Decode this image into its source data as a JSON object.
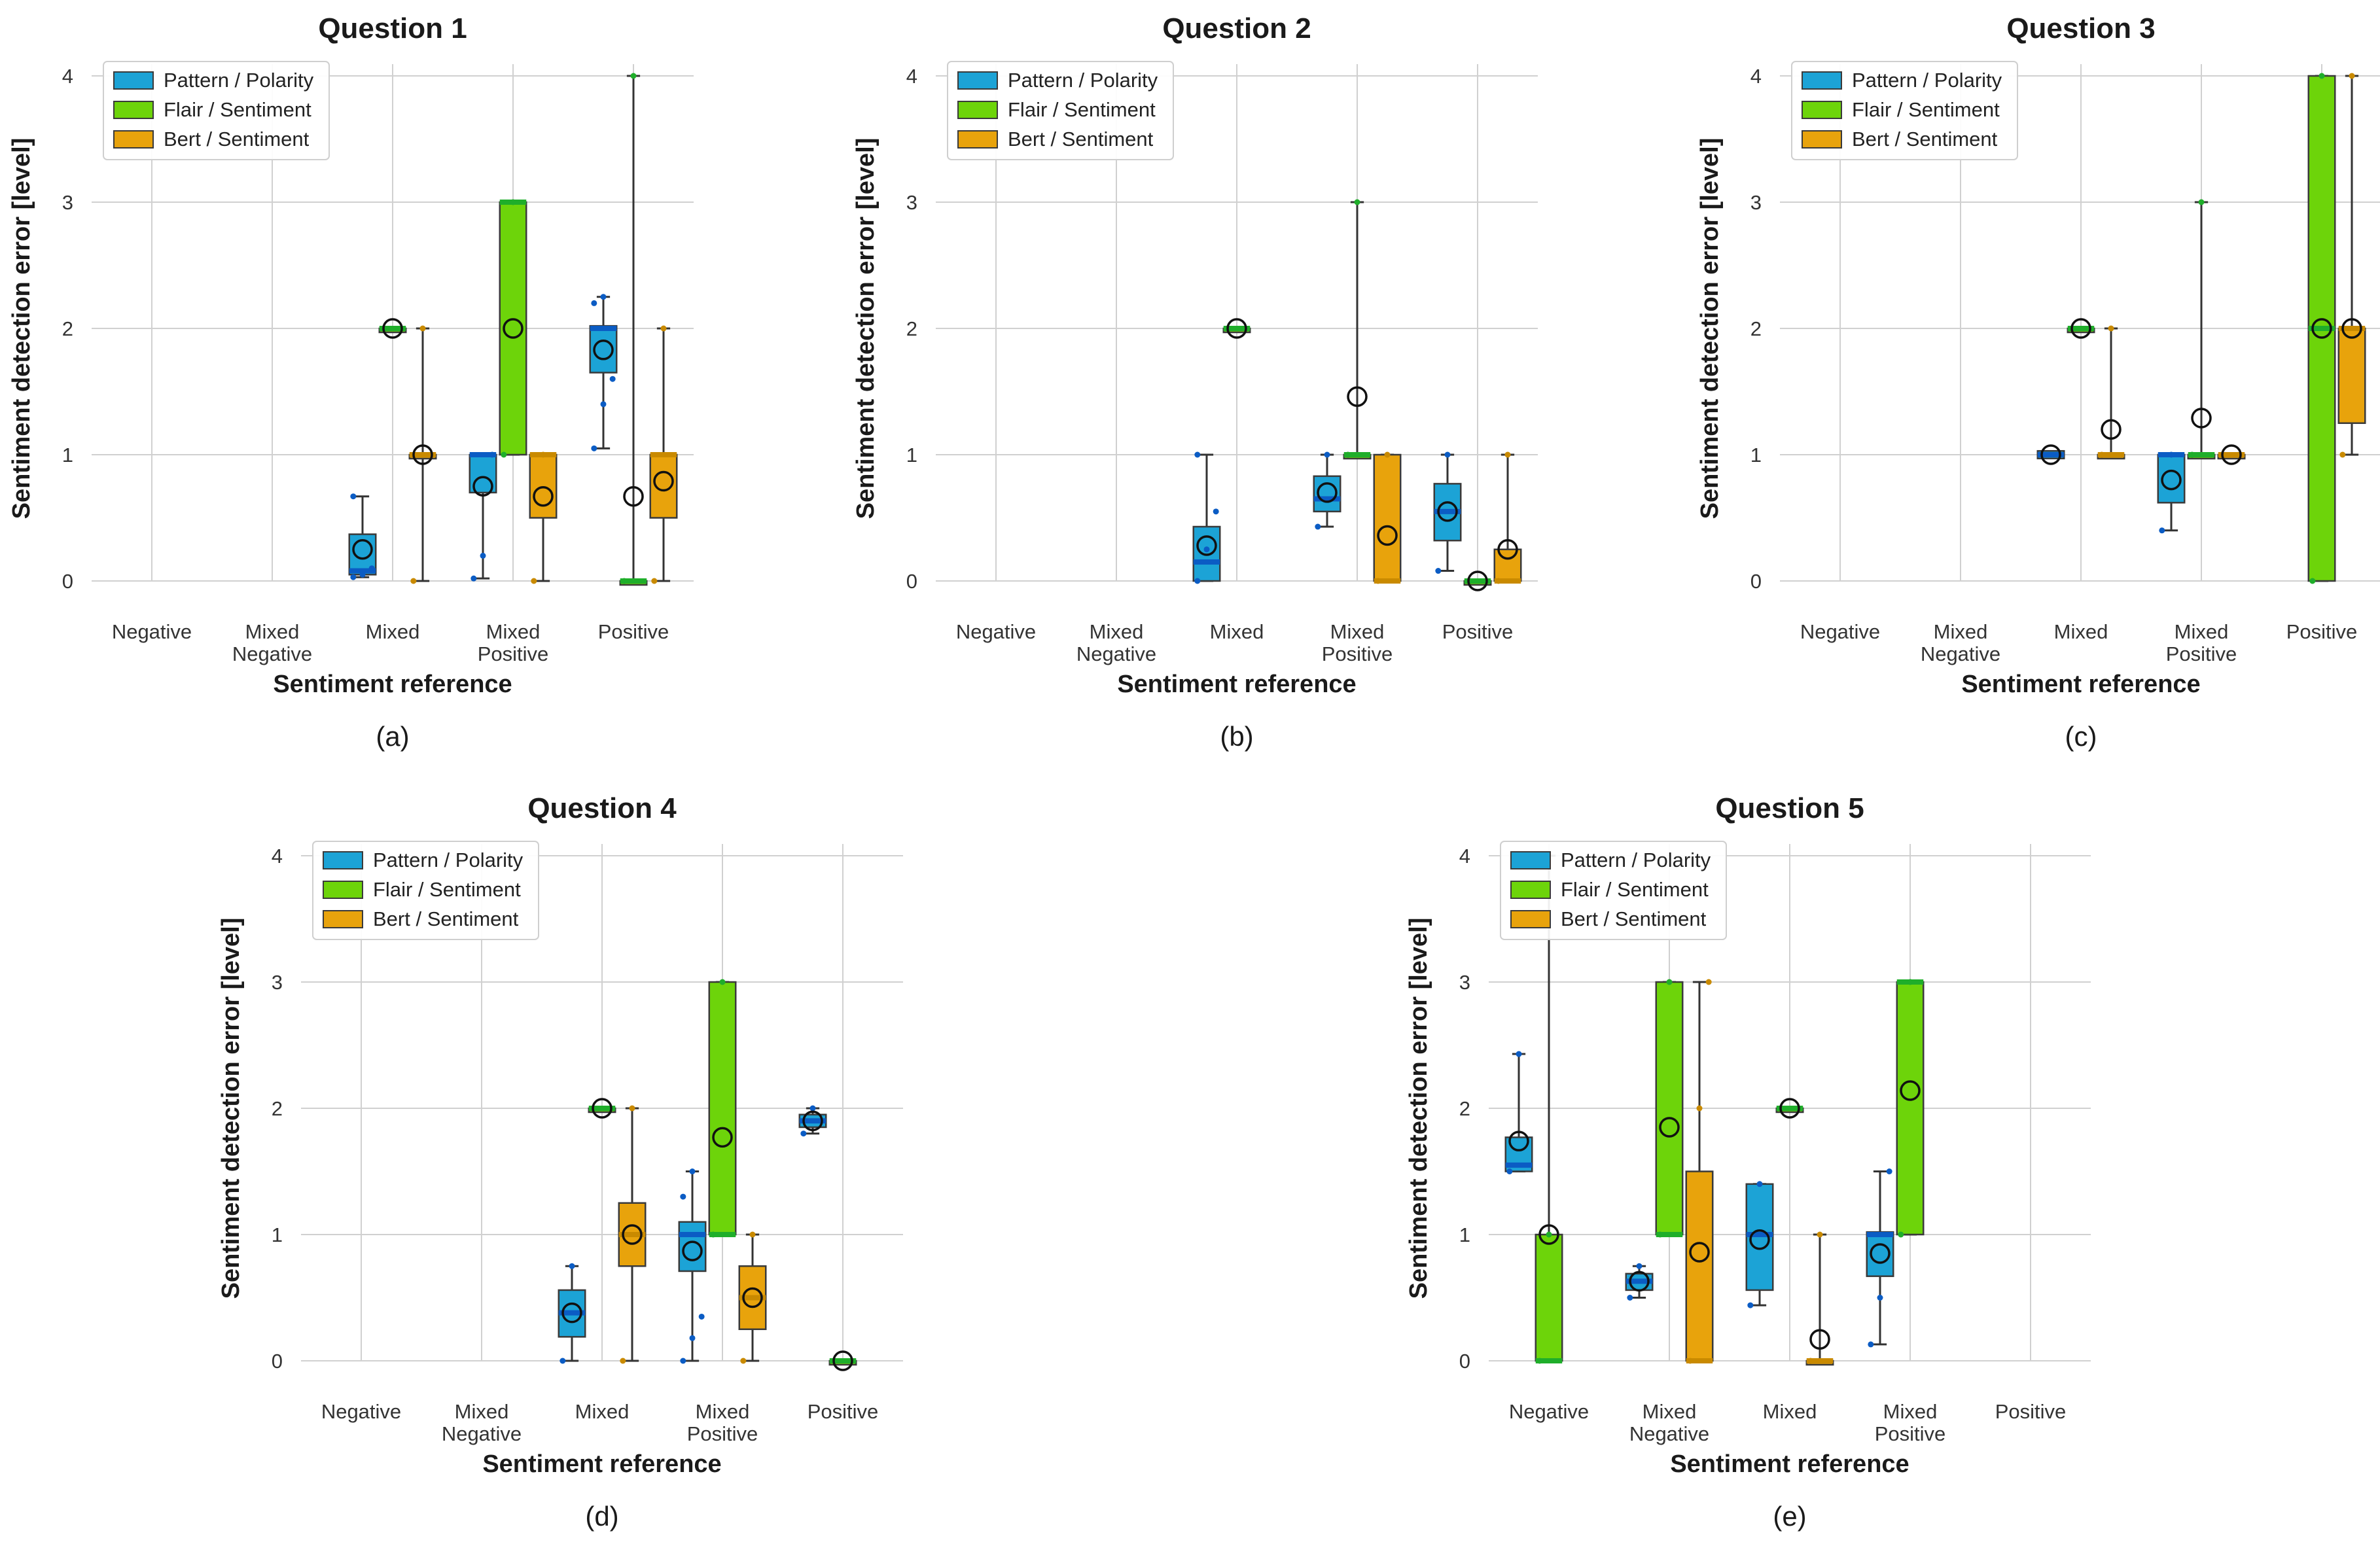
{
  "colors": {
    "pattern": "#1ca3d6",
    "flair": "#6dd40a",
    "bert": "#e8a30c",
    "pattern_median": "#0b5cc4",
    "flair_median": "#1fae2a",
    "bert_median": "#c98a00",
    "grid": "#d0d0d0",
    "whisker": "#333333"
  },
  "chart_data": [
    {
      "type": "box",
      "title": "Question 1",
      "caption": "(a)",
      "caption_letter": "a",
      "xlabel": "Sentiment reference",
      "ylabel": "Sentiment detection error [level]",
      "ylim": [
        0,
        4
      ],
      "yticks": [
        "0",
        "1",
        "2",
        "3",
        "4"
      ],
      "categories": [
        [
          "Negative"
        ],
        [
          "Mixed",
          "Negative"
        ],
        [
          "Mixed"
        ],
        [
          "Mixed",
          "Positive"
        ],
        [
          "Positive"
        ]
      ],
      "legend": [
        "Pattern / Polarity",
        "Flair / Sentiment",
        "Bert / Sentiment"
      ],
      "legend_position": "top-left",
      "series": [
        {
          "name": "Pattern / Polarity",
          "boxes": [
            null,
            null,
            {
              "wlo": 0.03,
              "q1": 0.05,
              "med": 0.08,
              "q3": 0.37,
              "whi": 0.67,
              "mean": 0.25,
              "pts": [
                0.03,
                0.05,
                0.1,
                0.67
              ]
            },
            {
              "wlo": 0.02,
              "q1": 0.7,
              "med": 1.0,
              "q3": 1.0,
              "whi": 1.0,
              "mean": 0.75,
              "pts": [
                0.02,
                0.2,
                1.0
              ]
            },
            {
              "wlo": 1.05,
              "q1": 1.65,
              "med": 2.0,
              "q3": 2.02,
              "whi": 2.25,
              "mean": 1.83,
              "pts": [
                1.05,
                1.4,
                1.6,
                2.2,
                2.25
              ]
            }
          ]
        },
        {
          "name": "Flair / Sentiment",
          "boxes": [
            null,
            null,
            {
              "wlo": 2.0,
              "q1": 2.0,
              "med": 2.0,
              "q3": 2.0,
              "whi": 2.0,
              "mean": 2.0,
              "pts": [
                2.0
              ]
            },
            {
              "wlo": 1.0,
              "q1": 1.0,
              "med": 3.0,
              "q3": 3.0,
              "whi": 3.0,
              "mean": 2.0,
              "pts": [
                1.0,
                3.0
              ]
            },
            {
              "wlo": 0.0,
              "q1": 0.0,
              "med": 0.0,
              "q3": 0.0,
              "whi": 4.0,
              "mean": 0.67,
              "pts": [
                0.0,
                4.0
              ]
            }
          ]
        },
        {
          "name": "Bert / Sentiment",
          "boxes": [
            null,
            null,
            {
              "wlo": 0.0,
              "q1": 1.0,
              "med": 1.0,
              "q3": 1.0,
              "whi": 2.0,
              "mean": 1.0,
              "pts": [
                0.0,
                2.0
              ]
            },
            {
              "wlo": 0.0,
              "q1": 0.5,
              "med": 1.0,
              "q3": 1.0,
              "whi": 1.0,
              "mean": 0.67,
              "pts": [
                0.0,
                1.0
              ]
            },
            {
              "wlo": 0.0,
              "q1": 0.5,
              "med": 1.0,
              "q3": 1.0,
              "whi": 2.0,
              "mean": 0.79,
              "pts": [
                0.0,
                2.0
              ]
            }
          ]
        }
      ]
    },
    {
      "type": "box",
      "title": "Question 2",
      "caption": "(b)",
      "caption_letter": "b",
      "xlabel": "Sentiment reference",
      "ylabel": "Sentiment detection error [level]",
      "ylim": [
        0,
        4
      ],
      "yticks": [
        "0",
        "1",
        "2",
        "3",
        "4"
      ],
      "categories": [
        [
          "Negative"
        ],
        [
          "Mixed",
          "Negative"
        ],
        [
          "Mixed"
        ],
        [
          "Mixed",
          "Positive"
        ],
        [
          "Positive"
        ]
      ],
      "legend": [
        "Pattern / Polarity",
        "Flair / Sentiment",
        "Bert / Sentiment"
      ],
      "legend_position": "top-left",
      "series": [
        {
          "name": "Pattern / Polarity",
          "boxes": [
            null,
            null,
            {
              "wlo": 0.0,
              "q1": 0.0,
              "med": 0.15,
              "q3": 0.43,
              "whi": 1.0,
              "mean": 0.28,
              "pts": [
                0.0,
                0.25,
                0.55,
                1.0
              ]
            },
            {
              "wlo": 0.43,
              "q1": 0.55,
              "med": 0.65,
              "q3": 0.83,
              "whi": 1.0,
              "mean": 0.7,
              "pts": [
                0.43,
                1.0
              ]
            },
            {
              "wlo": 0.08,
              "q1": 0.32,
              "med": 0.55,
              "q3": 0.77,
              "whi": 1.0,
              "mean": 0.55,
              "pts": [
                0.08,
                1.0
              ]
            }
          ]
        },
        {
          "name": "Flair / Sentiment",
          "boxes": [
            null,
            null,
            {
              "wlo": 2.0,
              "q1": 2.0,
              "med": 2.0,
              "q3": 2.0,
              "whi": 2.0,
              "mean": 2.0,
              "pts": [
                2.0
              ]
            },
            {
              "wlo": 1.0,
              "q1": 1.0,
              "med": 1.0,
              "q3": 1.0,
              "whi": 3.0,
              "mean": 1.46,
              "pts": [
                1.0,
                3.0
              ]
            },
            {
              "wlo": 0.0,
              "q1": 0.0,
              "med": 0.0,
              "q3": 0.0,
              "whi": 0.0,
              "mean": 0.0,
              "pts": [
                0.0
              ]
            }
          ]
        },
        {
          "name": "Bert / Sentiment",
          "boxes": [
            null,
            null,
            null,
            {
              "wlo": 0.0,
              "q1": 0.0,
              "med": 0.0,
              "q3": 1.0,
              "whi": 1.0,
              "mean": 0.36,
              "pts": [
                0.0,
                1.0
              ]
            },
            {
              "wlo": 0.0,
              "q1": 0.0,
              "med": 0.0,
              "q3": 0.25,
              "whi": 1.0,
              "mean": 0.25,
              "pts": [
                0.0,
                1.0
              ]
            }
          ]
        }
      ]
    },
    {
      "type": "box",
      "title": "Question 3",
      "caption": "(c)",
      "caption_letter": "c",
      "xlabel": "Sentiment reference",
      "ylabel": "Sentiment detection error [level]",
      "ylim": [
        0,
        4
      ],
      "yticks": [
        "0",
        "1",
        "2",
        "3",
        "4"
      ],
      "categories": [
        [
          "Negative"
        ],
        [
          "Mixed",
          "Negative"
        ],
        [
          "Mixed"
        ],
        [
          "Mixed",
          "Positive"
        ],
        [
          "Positive"
        ]
      ],
      "legend": [
        "Pattern / Polarity",
        "Flair / Sentiment",
        "Bert / Sentiment"
      ],
      "legend_position": "top-left",
      "series": [
        {
          "name": "Pattern / Polarity",
          "boxes": [
            null,
            null,
            {
              "wlo": 1.0,
              "q1": 0.97,
              "med": 1.0,
              "q3": 1.03,
              "whi": 1.0,
              "mean": 1.0,
              "pts": [
                1.0
              ]
            },
            {
              "wlo": 0.4,
              "q1": 0.62,
              "med": 1.0,
              "q3": 1.0,
              "whi": 1.0,
              "mean": 0.8,
              "pts": [
                0.4,
                1.0
              ]
            },
            null
          ]
        },
        {
          "name": "Flair / Sentiment",
          "boxes": [
            null,
            null,
            {
              "wlo": 2.0,
              "q1": 2.0,
              "med": 2.0,
              "q3": 2.0,
              "whi": 2.0,
              "mean": 2.0,
              "pts": [
                2.0
              ]
            },
            {
              "wlo": 1.0,
              "q1": 1.0,
              "med": 1.0,
              "q3": 1.0,
              "whi": 3.0,
              "mean": 1.29,
              "pts": [
                1.0,
                3.0
              ]
            },
            {
              "wlo": 0.0,
              "q1": 0.0,
              "med": 2.0,
              "q3": 4.0,
              "whi": 4.0,
              "mean": 2.0,
              "pts": [
                0.0,
                4.0
              ]
            }
          ]
        },
        {
          "name": "Bert / Sentiment",
          "boxes": [
            null,
            null,
            {
              "wlo": 1.0,
              "q1": 1.0,
              "med": 1.0,
              "q3": 1.0,
              "whi": 2.0,
              "mean": 1.2,
              "pts": [
                1.0,
                2.0
              ]
            },
            {
              "wlo": 1.0,
              "q1": 1.0,
              "med": 1.0,
              "q3": 1.0,
              "whi": 1.0,
              "mean": 1.0,
              "pts": [
                1.0
              ]
            },
            {
              "wlo": 1.0,
              "q1": 1.25,
              "med": 2.0,
              "q3": 2.0,
              "whi": 4.0,
              "mean": 2.0,
              "pts": [
                1.0,
                4.0
              ]
            }
          ]
        }
      ]
    },
    {
      "type": "box",
      "title": "Question 4",
      "caption": "(d)",
      "caption_letter": "d",
      "xlabel": "Sentiment reference",
      "ylabel": "Sentiment detection error [level]",
      "ylim": [
        0,
        4
      ],
      "yticks": [
        "0",
        "1",
        "2",
        "3",
        "4"
      ],
      "categories": [
        [
          "Negative"
        ],
        [
          "Mixed",
          "Negative"
        ],
        [
          "Mixed"
        ],
        [
          "Mixed",
          "Positive"
        ],
        [
          "Positive"
        ]
      ],
      "legend": [
        "Pattern / Polarity",
        "Flair / Sentiment",
        "Bert / Sentiment"
      ],
      "legend_position": "top-left",
      "series": [
        {
          "name": "Pattern / Polarity",
          "boxes": [
            null,
            null,
            {
              "wlo": 0.0,
              "q1": 0.19,
              "med": 0.38,
              "q3": 0.56,
              "whi": 0.75,
              "mean": 0.38,
              "pts": [
                0.0,
                0.75
              ]
            },
            {
              "wlo": 0.0,
              "q1": 0.71,
              "med": 1.0,
              "q3": 1.1,
              "whi": 1.5,
              "mean": 0.87,
              "pts": [
                0.0,
                0.18,
                0.35,
                1.3,
                1.5
              ]
            },
            {
              "wlo": 1.8,
              "q1": 1.85,
              "med": 1.9,
              "q3": 1.95,
              "whi": 2.0,
              "mean": 1.9,
              "pts": [
                1.8,
                2.0
              ]
            }
          ]
        },
        {
          "name": "Flair / Sentiment",
          "boxes": [
            null,
            null,
            {
              "wlo": 2.0,
              "q1": 2.0,
              "med": 2.0,
              "q3": 2.0,
              "whi": 2.0,
              "mean": 2.0,
              "pts": [
                2.0
              ]
            },
            {
              "wlo": 1.0,
              "q1": 1.0,
              "med": 1.0,
              "q3": 3.0,
              "whi": 3.0,
              "mean": 1.77,
              "pts": [
                1.0,
                3.0
              ]
            },
            {
              "wlo": 0.0,
              "q1": 0.0,
              "med": 0.0,
              "q3": 0.0,
              "whi": 0.0,
              "mean": 0.0,
              "pts": [
                0.0
              ]
            }
          ]
        },
        {
          "name": "Bert / Sentiment",
          "boxes": [
            null,
            null,
            {
              "wlo": 0.0,
              "q1": 0.75,
              "med": 1.0,
              "q3": 1.25,
              "whi": 2.0,
              "mean": 1.0,
              "pts": [
                0.0,
                2.0
              ]
            },
            {
              "wlo": 0.0,
              "q1": 0.25,
              "med": 0.5,
              "q3": 0.75,
              "whi": 1.0,
              "mean": 0.5,
              "pts": [
                0.0,
                1.0
              ]
            },
            null
          ]
        }
      ]
    },
    {
      "type": "box",
      "title": "Question 5",
      "caption": "(e)",
      "caption_letter": "e",
      "xlabel": "Sentiment reference",
      "ylabel": "Sentiment detection error [level]",
      "ylim": [
        0,
        4
      ],
      "yticks": [
        "0",
        "1",
        "2",
        "3",
        "4"
      ],
      "categories": [
        [
          "Negative"
        ],
        [
          "Mixed",
          "Negative"
        ],
        [
          "Mixed"
        ],
        [
          "Mixed",
          "Positive"
        ],
        [
          "Positive"
        ]
      ],
      "legend": [
        "Pattern / Polarity",
        "Flair / Sentiment",
        "Bert / Sentiment"
      ],
      "legend_position": "top-left",
      "series": [
        {
          "name": "Pattern / Polarity",
          "boxes": [
            {
              "wlo": 1.5,
              "q1": 1.5,
              "med": 1.55,
              "q3": 1.77,
              "whi": 2.43,
              "mean": 1.74,
              "pts": [
                1.5,
                2.43
              ]
            },
            {
              "wlo": 0.5,
              "q1": 0.56,
              "med": 0.63,
              "q3": 0.69,
              "whi": 0.75,
              "mean": 0.63,
              "pts": [
                0.5,
                0.75
              ]
            },
            {
              "wlo": 0.44,
              "q1": 0.56,
              "med": 1.0,
              "q3": 1.4,
              "whi": 1.4,
              "mean": 0.96,
              "pts": [
                0.44,
                1.4
              ]
            },
            {
              "wlo": 0.13,
              "q1": 0.67,
              "med": 1.0,
              "q3": 1.02,
              "whi": 1.5,
              "mean": 0.85,
              "pts": [
                0.13,
                0.5,
                1.5
              ]
            },
            null
          ]
        },
        {
          "name": "Flair / Sentiment",
          "boxes": [
            {
              "wlo": 0.0,
              "q1": 0.0,
              "med": 0.0,
              "q3": 1.0,
              "whi": 4.0,
              "mean": 1.0,
              "pts": [
                0.0,
                1.0
              ]
            },
            {
              "wlo": 1.0,
              "q1": 1.0,
              "med": 1.0,
              "q3": 3.0,
              "whi": 3.0,
              "mean": 1.85,
              "pts": [
                1.0,
                3.0
              ]
            },
            {
              "wlo": 2.0,
              "q1": 2.0,
              "med": 2.0,
              "q3": 2.0,
              "whi": 2.0,
              "mean": 2.0,
              "pts": [
                2.0
              ]
            },
            {
              "wlo": 1.0,
              "q1": 1.0,
              "med": 3.0,
              "q3": 3.0,
              "whi": 3.0,
              "mean": 2.14,
              "pts": [
                1.0,
                3.0
              ]
            },
            null
          ]
        },
        {
          "name": "Bert / Sentiment",
          "boxes": [
            null,
            {
              "wlo": 0.0,
              "q1": 0.0,
              "med": 0.0,
              "q3": 1.5,
              "whi": 3.0,
              "mean": 0.86,
              "pts": [
                0.0,
                2.0,
                3.0
              ]
            },
            {
              "wlo": 0.0,
              "q1": 0.0,
              "med": 0.0,
              "q3": 0.0,
              "whi": 1.0,
              "mean": 0.17,
              "pts": [
                0.0,
                1.0
              ]
            },
            null,
            null
          ]
        }
      ]
    }
  ]
}
